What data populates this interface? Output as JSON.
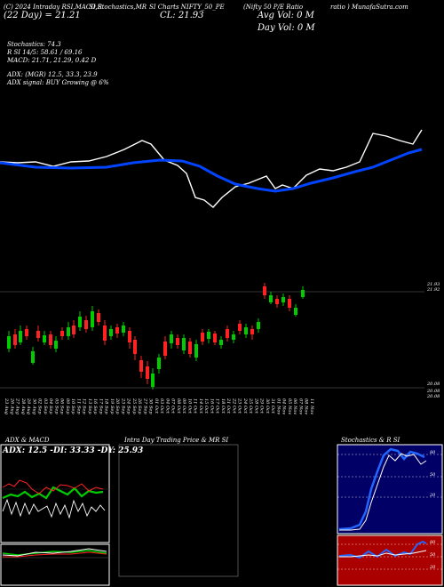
{
  "header": {
    "title_left": "(C) 2024 Intraday RSI,MACD,R",
    "title_mid1": "SI,Stochastics,MR",
    "title_mid2": "SI Charts NIFTY_50_PE",
    "title_right1": "(Nifty 50 P/E Ratio",
    "title_right2": "ratio ) MunafaSutra.com",
    "date_line": "(22 Day) = 21.21",
    "cl_line": "CL: 21.93",
    "avg_vol": "Avg Vol: 0  M",
    "day_vol": "Day Vol: 0  M"
  },
  "indicators": {
    "stochastics": "Stochastics: 74.3",
    "rsi": "R                SI 14/5: 58.61 / 69.16",
    "macd": "MACD: 21.71,  21.29,  0.42  D",
    "adx": "ADX:                                (MGR) 12.5,  33.3,  23.9",
    "adx_signal": "ADX  signal:                            BUY Growing @ 6%"
  },
  "price_labels": {
    "high": "21.93",
    "high2": "21.92",
    "low": "20.08",
    "low2": "20.08",
    "low3": "20.08"
  },
  "dates": [
    "23 Aug",
    "26 Aug",
    "27 Aug",
    "28 Aug",
    "29 Aug",
    "30 Aug",
    "02 Sep",
    "03 Sep",
    "04 Sep",
    "05 Sep",
    "06 Sep",
    "09 Sep",
    "10 Sep",
    "11 Sep",
    "12 Sep",
    "13 Sep",
    "16 Sep",
    "17 Sep",
    "18 Sep",
    "19 Sep",
    "20 Sep",
    "23 Sep",
    "24 Sep",
    "25 Sep",
    "26 Sep",
    "27 Sep",
    "30 Sep",
    "01 Oct",
    "03 Oct",
    "04 Oct",
    "07 Oct",
    "08 Oct",
    "09 Oct",
    "10 Oct",
    "11 Oct",
    "14 Oct",
    "15 Oct",
    "16 Oct",
    "17 Oct",
    "18 Oct",
    "21 Oct",
    "22 Oct",
    "23 Oct",
    "24 Oct",
    "25 Oct",
    "28 Oct",
    "29 Oct",
    "30 Oct",
    "31 Oct",
    "01 Nov",
    "04 Nov",
    "05 Nov",
    "06 Nov",
    "07 Nov",
    "08 Nov",
    "11 Nov"
  ],
  "panels": {
    "adx_title": "ADX  & MACD",
    "adx_values": "ADX: 12.5 -DI: 33.33 -DY: 25.93",
    "intraday_title": "Intra  Day Trading Price  & MR                       SI",
    "stoch_title": "Stochastics & R                 SI",
    "stoch_ticks": [
      "80",
      "50",
      "20"
    ],
    "rsi_ticks": [
      "80",
      "50",
      "20"
    ]
  },
  "colors": {
    "background": "#000000",
    "bull": "#00cc00",
    "bear": "#ff2222",
    "ma": "#0044ff",
    "stoch_bg": "#000066",
    "rsi_bg": "#aa0000"
  }
}
